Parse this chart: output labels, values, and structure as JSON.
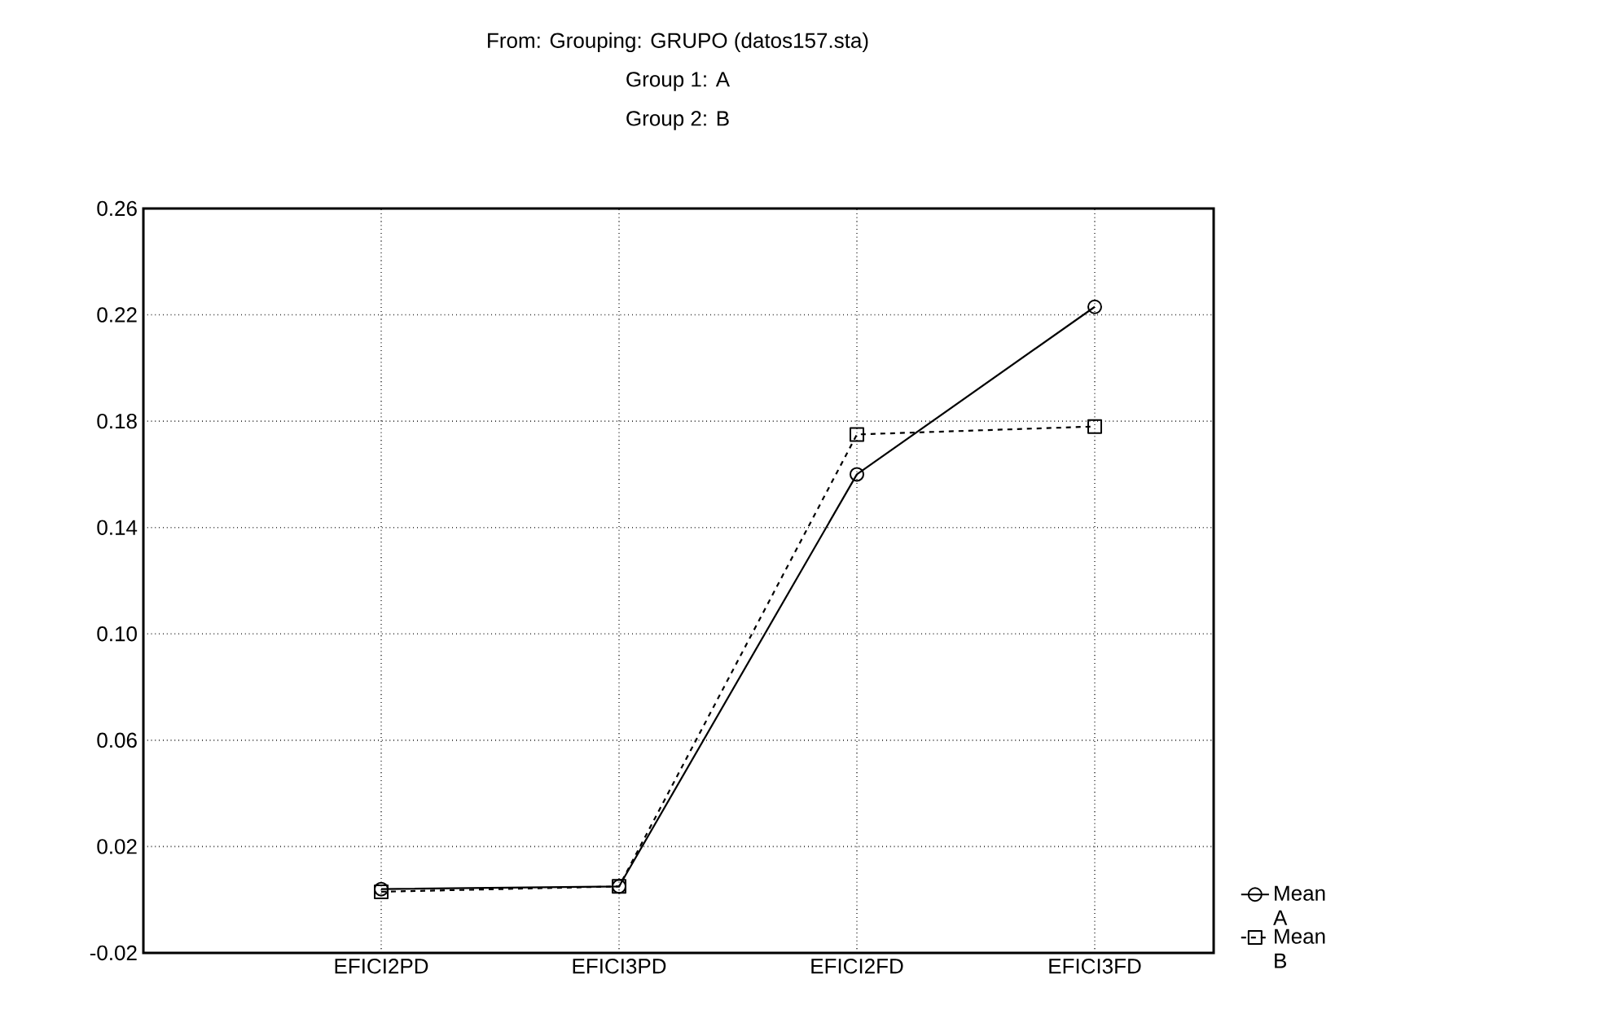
{
  "chart_data": {
    "type": "line",
    "title": "From: Grouping: GRUPO (datos157.sta)",
    "annotations": [
      "Group 1: A",
      "Group 2: B"
    ],
    "categories": [
      "EFICI2PD",
      "EFICI3PD",
      "EFICI2FD",
      "EFICI3FD"
    ],
    "series": [
      {
        "name": "Mean A",
        "color": "#000000",
        "values": [
          0.004,
          0.005,
          0.16,
          0.223
        ],
        "marker": "circle",
        "line_style": "solid"
      },
      {
        "name": "Mean B",
        "color": "#000000",
        "values": [
          0.003,
          0.005,
          0.175,
          0.178
        ],
        "marker": "square",
        "line_style": "dashed"
      }
    ],
    "ylim": [
      -0.02,
      0.26
    ],
    "yticks": [
      -0.02,
      0.02,
      0.06,
      {
        "value": 0.1,
        "label": "0.10"
      },
      0.14,
      0.18,
      0.22,
      0.26
    ],
    "grid": true,
    "legend": "bottom right"
  }
}
